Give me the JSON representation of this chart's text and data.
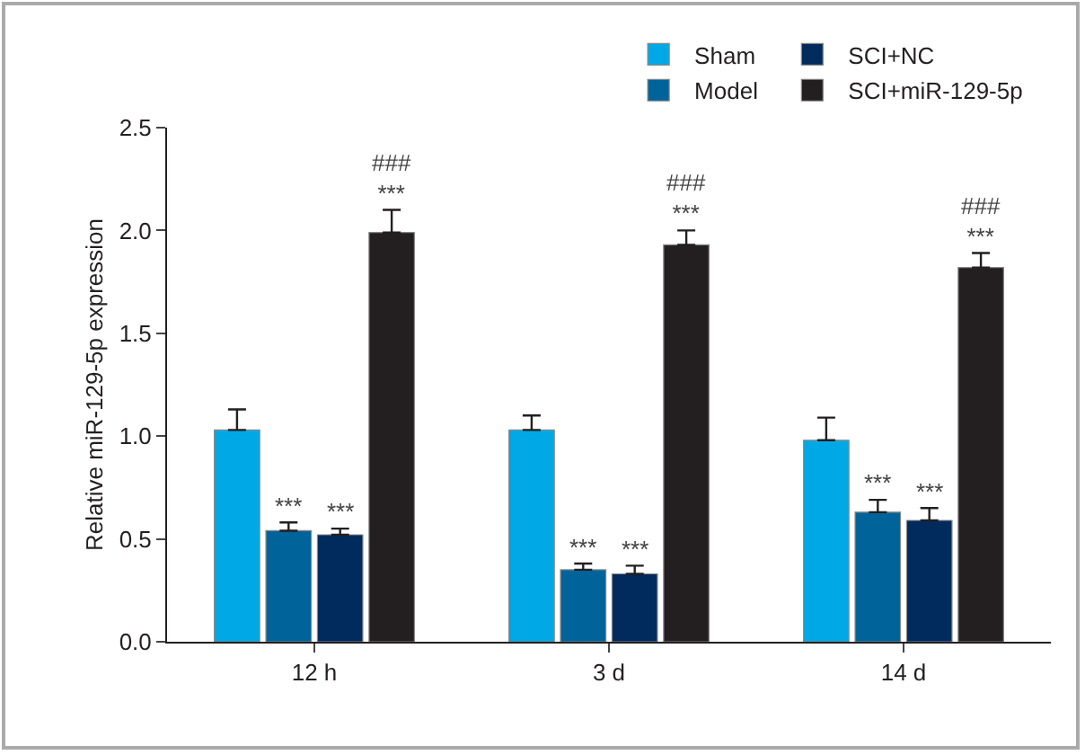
{
  "chart_data": {
    "type": "bar",
    "ylabel": "Relative miR-129-5p expression",
    "categories": [
      "12 h",
      "3 d",
      "14 d"
    ],
    "series": [
      {
        "name": "Sham",
        "color": "#00a9e6",
        "values": [
          1.03,
          1.03,
          0.98
        ],
        "errors": [
          0.1,
          0.07,
          0.11
        ],
        "value_labels": [
          null,
          null,
          null
        ]
      },
      {
        "name": "Model",
        "color": "#006399",
        "values": [
          0.54,
          0.35,
          0.63
        ],
        "errors": [
          0.04,
          0.03,
          0.06
        ],
        "value_labels": [
          "***",
          "***",
          "***"
        ]
      },
      {
        "name": "SCI+NC",
        "color": "#002b5c",
        "values": [
          0.52,
          0.33,
          0.59
        ],
        "errors": [
          0.03,
          0.04,
          0.06
        ],
        "value_labels": [
          "***",
          "***",
          "***"
        ]
      },
      {
        "name": "SCI+miR-129-5p",
        "color": "#231f20",
        "values": [
          1.99,
          1.93,
          1.82
        ],
        "errors": [
          0.11,
          0.07,
          0.07
        ],
        "value_labels": [
          "###\n***",
          "###\n***",
          "###\n***"
        ]
      }
    ],
    "ylim": [
      0,
      2.5
    ],
    "yticks": [
      {
        "value": 0,
        "label": "0.0"
      },
      {
        "value": 0.5,
        "label": "0.5"
      },
      {
        "value": 1,
        "label": "1.0"
      },
      {
        "value": 1.5,
        "label": "1.5"
      },
      {
        "value": 2,
        "label": "2.0"
      },
      {
        "value": 2.5,
        "label": "2.5"
      }
    ],
    "grid": false,
    "legend": "top right"
  }
}
